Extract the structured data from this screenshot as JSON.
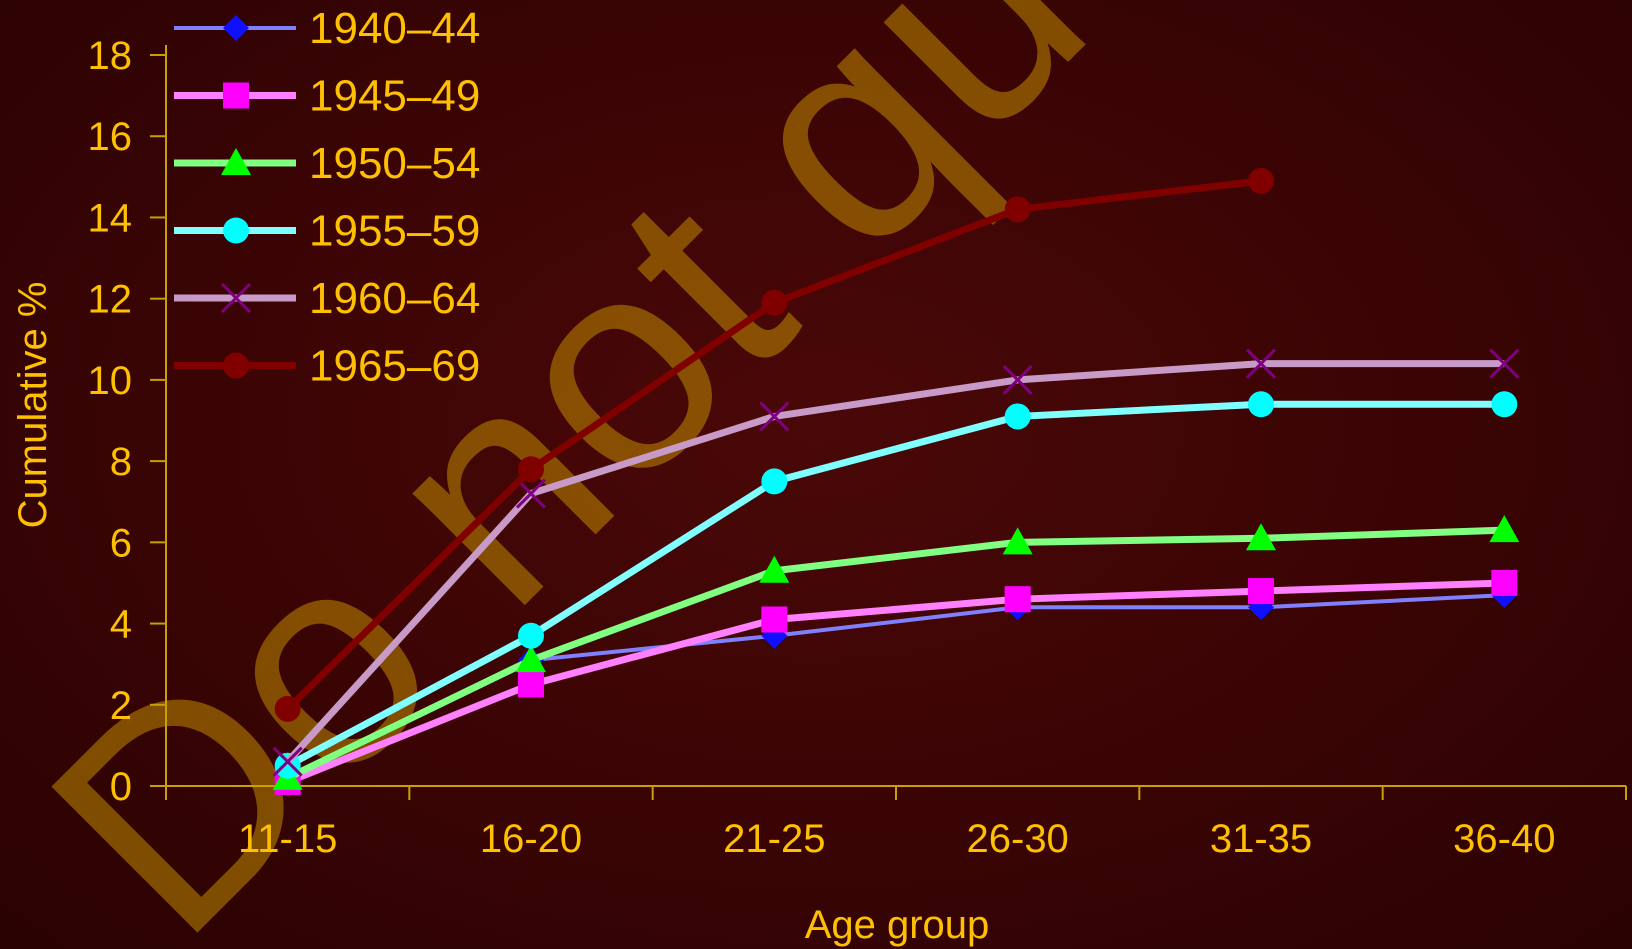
{
  "colors": {
    "background": "#3a0404",
    "text": "#ffc000",
    "axis": "#c8a000",
    "watermark": "#c08a00"
  },
  "watermark_text": "Do not quote or cite",
  "chart_data": {
    "type": "line",
    "title": "",
    "xlabel": "Age group",
    "ylabel": "Cumulative %",
    "ylim": [
      0,
      18
    ],
    "yticks": [
      0,
      2,
      4,
      6,
      8,
      10,
      12,
      14,
      16,
      18
    ],
    "categories": [
      "11-15",
      "16-20",
      "21-25",
      "26-30",
      "31-35",
      "36-40"
    ],
    "grid": false,
    "legend_position": "top-left",
    "series": [
      {
        "name": "1940–44",
        "color": "#8080ff",
        "marker": "diamond",
        "marker_color": "#1010ff",
        "values": [
          0.2,
          3.1,
          3.7,
          4.4,
          4.4,
          4.7
        ]
      },
      {
        "name": "1945–49",
        "color": "#ff80ff",
        "marker": "square",
        "marker_color": "#ff00ff",
        "values": [
          0.1,
          2.5,
          4.1,
          4.6,
          4.8,
          5.0
        ]
      },
      {
        "name": "1950–54",
        "color": "#80ff80",
        "marker": "triangle",
        "marker_color": "#00ff00",
        "values": [
          0.2,
          3.1,
          5.3,
          6.0,
          6.1,
          6.3
        ]
      },
      {
        "name": "1955–59",
        "color": "#80ffff",
        "marker": "circle",
        "marker_color": "#00ffff",
        "values": [
          0.5,
          3.7,
          7.5,
          9.1,
          9.4,
          9.4
        ]
      },
      {
        "name": "1960–64",
        "color": "#c89ac8",
        "marker": "x",
        "marker_color": "#800080",
        "values": [
          0.6,
          7.2,
          9.1,
          10.0,
          10.4,
          10.4
        ]
      },
      {
        "name": "1965–69",
        "color": "#800000",
        "marker": "circle",
        "marker_color": "#800000",
        "values": [
          1.9,
          7.8,
          11.9,
          14.2,
          14.9,
          null
        ]
      }
    ]
  }
}
